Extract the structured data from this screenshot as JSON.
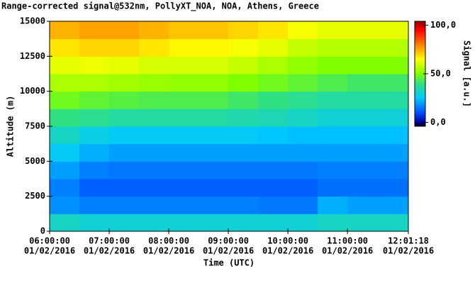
{
  "chart_data": {
    "type": "heatmap",
    "title": "Range-corrected signal@532nm, PollyXT_NOA, NOA, Athens, Greece",
    "xlabel": "Time (UTC)",
    "ylabel": "Altitude (m)",
    "colorbar_label": "Signal [a.u.]",
    "xlim": [
      6,
      12.0217
    ],
    "xticks": [
      {
        "value": 6,
        "label": [
          "06:00:00",
          "01/02/2016"
        ]
      },
      {
        "value": 7,
        "label": [
          "07:00:00",
          "01/02/2016"
        ]
      },
      {
        "value": 8,
        "label": [
          "08:00:00",
          "01/02/2016"
        ]
      },
      {
        "value": 9,
        "label": [
          "09:00:00",
          "01/02/2016"
        ]
      },
      {
        "value": 10,
        "label": [
          "10:00:00",
          "01/02/2016"
        ]
      },
      {
        "value": 11,
        "label": [
          "11:00:00",
          "01/02/2016"
        ]
      },
      {
        "value": 12.0217,
        "label": [
          "12:01:18",
          "01/02/2016"
        ]
      }
    ],
    "ylim": [
      0,
      15000
    ],
    "yticks": [
      0,
      2500,
      5000,
      7500,
      10000,
      12500,
      15000
    ],
    "clim": [
      -4,
      104
    ],
    "cticks": [
      {
        "value": 0,
        "label": "0,0"
      },
      {
        "value": 50,
        "label": "50,0"
      },
      {
        "value": 100,
        "label": "100,0"
      }
    ],
    "colorscale": [
      {
        "value": -4,
        "color": "#000000"
      },
      {
        "value": 0,
        "color": "#0000a0"
      },
      {
        "value": 10,
        "color": "#0050ff"
      },
      {
        "value": 25,
        "color": "#00c8ff"
      },
      {
        "value": 40,
        "color": "#30e080"
      },
      {
        "value": 50,
        "color": "#80ff00"
      },
      {
        "value": 65,
        "color": "#ffff00"
      },
      {
        "value": 80,
        "color": "#ff8000"
      },
      {
        "value": 95,
        "color": "#ff0000"
      },
      {
        "value": 104,
        "color": "#900000"
      }
    ],
    "x_edges": [
      6,
      6.5,
      7,
      7.5,
      8,
      8.5,
      9,
      9.5,
      10,
      10.5,
      11,
      11.5,
      12.0217
    ],
    "y_edges": [
      0,
      1250,
      2500,
      3750,
      5000,
      6250,
      7500,
      8750,
      10000,
      11250,
      12500,
      13750,
      15000
    ],
    "values": [
      [
        32,
        30,
        30,
        30,
        30,
        30,
        30,
        30,
        30,
        32,
        32,
        32
      ],
      [
        18,
        16,
        16,
        16,
        16,
        16,
        16,
        15,
        15,
        22,
        20,
        20
      ],
      [
        16,
        12,
        12,
        12,
        12,
        12,
        12,
        12,
        12,
        14,
        14,
        14
      ],
      [
        20,
        16,
        15,
        15,
        15,
        15,
        15,
        15,
        15,
        16,
        16,
        16
      ],
      [
        26,
        22,
        20,
        20,
        20,
        20,
        20,
        20,
        20,
        20,
        20,
        20
      ],
      [
        32,
        28,
        26,
        26,
        26,
        26,
        26,
        25,
        24,
        24,
        24,
        24
      ],
      [
        40,
        38,
        36,
        36,
        36,
        36,
        35,
        34,
        32,
        30,
        30,
        30
      ],
      [
        48,
        46,
        45,
        44,
        44,
        44,
        42,
        40,
        38,
        36,
        36,
        36
      ],
      [
        55,
        55,
        54,
        53,
        52,
        52,
        50,
        48,
        46,
        44,
        42,
        42
      ],
      [
        62,
        63,
        62,
        60,
        60,
        60,
        58,
        55,
        52,
        50,
        50,
        50
      ],
      [
        68,
        70,
        70,
        68,
        66,
        66,
        64,
        62,
        58,
        56,
        56,
        56
      ],
      [
        74,
        76,
        76,
        74,
        72,
        72,
        70,
        68,
        64,
        62,
        62,
        62
      ]
    ]
  }
}
